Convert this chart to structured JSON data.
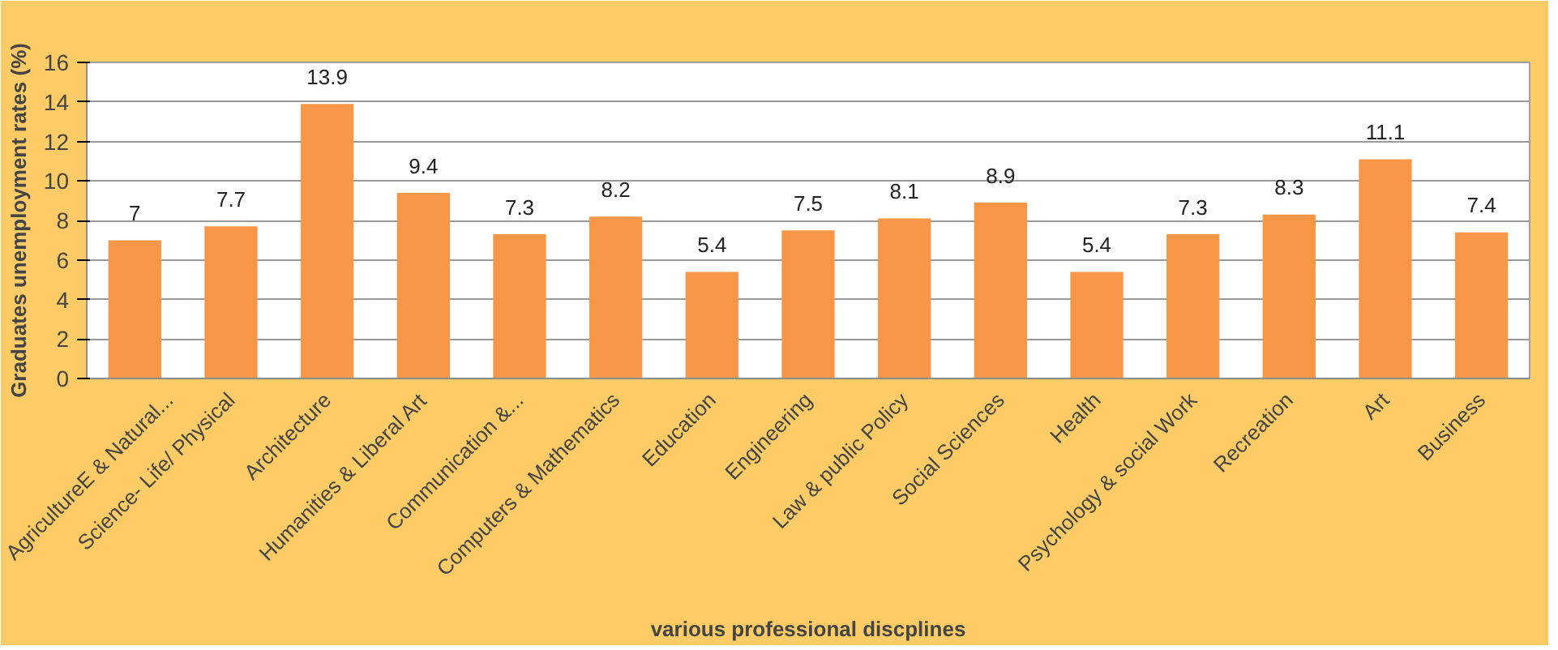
{
  "chart_data": {
    "type": "bar",
    "xlabel": "various professional discplines",
    "ylabel": "Graduates unemployment rates (%)",
    "categories": [
      "AgricultureE & Natural...",
      "Science- Life/ Physical",
      "Architecture",
      "Humanities & Liberal Art",
      "Communication &...",
      "Computers & Mathematics",
      "Education",
      "Engineering",
      "Law & public Policy",
      "Social Sciences",
      "Health",
      "Psychology & social Work",
      "Recreation",
      "Art",
      "Business"
    ],
    "values": [
      7,
      7.7,
      13.9,
      9.4,
      7.3,
      8.2,
      5.4,
      7.5,
      8.1,
      8.9,
      5.4,
      7.3,
      8.3,
      11.1,
      7.4
    ],
    "color": "#f79646",
    "ylim": [
      0,
      16
    ],
    "yticks": [
      0,
      2,
      4,
      6,
      8,
      10,
      12,
      14,
      16
    ],
    "grid": "y",
    "data_labels": true
  }
}
